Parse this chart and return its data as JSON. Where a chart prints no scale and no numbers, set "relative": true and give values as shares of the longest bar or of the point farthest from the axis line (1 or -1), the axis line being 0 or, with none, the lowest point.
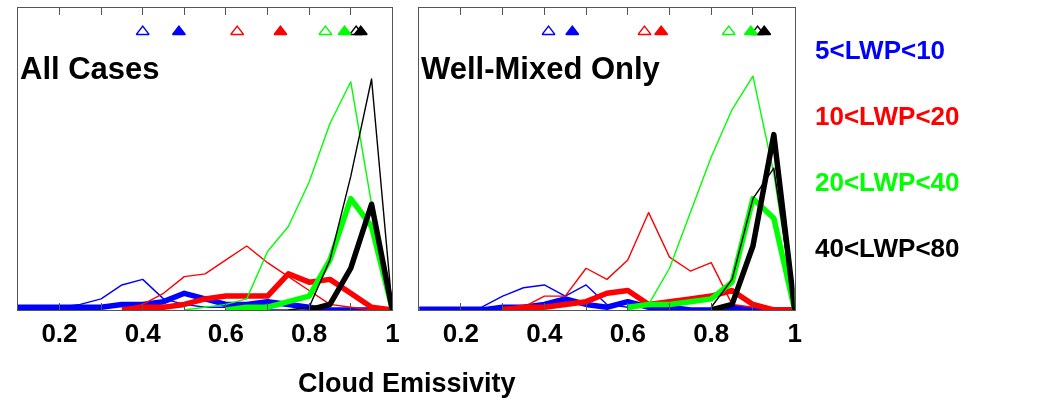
{
  "chart_data": [
    {
      "type": "line",
      "title": "All Cases",
      "xlabel": "Cloud Emissivity",
      "relative": true,
      "xlim": [
        0.1,
        1
      ],
      "xticks": [
        0.2,
        {
          "value": 0.3,
          "label": null
        },
        0.4,
        {
          "value": 0.5,
          "label": null
        },
        0.6,
        {
          "value": 0.7,
          "label": null
        },
        0.8,
        {
          "value": 0.9,
          "label": null
        },
        1
      ],
      "tick_labels": "x",
      "x": [
        0.1,
        0.15,
        0.2,
        0.25,
        0.3,
        0.35,
        0.4,
        0.45,
        0.5,
        0.55,
        0.6,
        0.65,
        0.7,
        0.75,
        0.8,
        0.85,
        0.9,
        0.95,
        1
      ],
      "series": [
        {
          "color": "#0000ff",
          "values": [
            0.01,
            0.01,
            0.01,
            0.02,
            0.04,
            0.09,
            0.11,
            0.04,
            0.02,
            0.01,
            0.01,
            0.01,
            0,
            0,
            0,
            0,
            0,
            0,
            0
          ]
        },
        {
          "color": "#0000ff",
          "values": [
            0.01,
            0.01,
            0.01,
            0.01,
            0.01,
            0.02,
            0.02,
            0.03,
            0.06,
            0.04,
            0.02,
            0.02,
            0.03,
            0.02,
            0.01,
            0,
            0,
            0,
            0
          ]
        },
        {
          "color": "#ff0000",
          "values": [
            null,
            null,
            null,
            null,
            null,
            0,
            0.02,
            0.06,
            0.12,
            0.13,
            0.18,
            0.23,
            0.17,
            0.12,
            0.07,
            0.02,
            0.01,
            0,
            0
          ]
        },
        {
          "color": "#ff0000",
          "values": [
            null,
            null,
            null,
            null,
            null,
            0,
            0.01,
            0.01,
            0.02,
            0.04,
            0.05,
            0.05,
            0.05,
            0.13,
            0.1,
            0.11,
            0.06,
            0.01,
            0
          ]
        },
        {
          "color": "#00ff00",
          "values": [
            null,
            null,
            null,
            null,
            null,
            null,
            null,
            null,
            0,
            0.01,
            0.02,
            0.04,
            0.21,
            0.3,
            0.46,
            0.67,
            0.82,
            0.38,
            0
          ]
        },
        {
          "color": "#00ff00",
          "values": [
            null,
            null,
            null,
            null,
            null,
            null,
            null,
            null,
            null,
            null,
            0,
            0.01,
            0.01,
            0.03,
            0.05,
            0.18,
            0.4,
            0.3,
            0
          ]
        },
        {
          "color": "#000000",
          "values": [
            null,
            null,
            null,
            null,
            null,
            null,
            null,
            null,
            null,
            null,
            null,
            null,
            null,
            0,
            0.01,
            0.18,
            0.48,
            0.83,
            0
          ]
        },
        {
          "color": "#000000",
          "values": [
            null,
            null,
            null,
            null,
            null,
            null,
            null,
            null,
            null,
            null,
            null,
            null,
            null,
            null,
            0,
            0.02,
            0.15,
            0.38,
            0
          ]
        },
        {
          "type": "scatter",
          "marker": "triangle",
          "x": [
            0.4,
            0.627,
            0.839,
            0.913
          ],
          "values": [
            1,
            1,
            1,
            1
          ],
          "colors": [
            "#0000ff",
            "#ff0000",
            "#00ff00",
            "#000000"
          ]
        },
        {
          "type": "scatter",
          "marker": "triangle",
          "x": [
            0.487,
            0.731,
            0.885,
            0.924
          ],
          "values": [
            1,
            1,
            1,
            1
          ],
          "colors": [
            "#0000ff",
            "#ff0000",
            "#00ff00",
            "#000000"
          ]
        }
      ]
    },
    {
      "type": "line",
      "title": "Well-Mixed Only",
      "relative": true,
      "xlim": [
        0.1,
        1
      ],
      "xticks": [
        0.2,
        {
          "value": 0.3,
          "label": null
        },
        0.4,
        {
          "value": 0.5,
          "label": null
        },
        0.6,
        {
          "value": 0.7,
          "label": null
        },
        0.8,
        {
          "value": 0.9,
          "label": null
        },
        1
      ],
      "tick_labels": "x",
      "x": [
        0.1,
        0.15,
        0.2,
        0.25,
        0.3,
        0.35,
        0.4,
        0.45,
        0.5,
        0.55,
        0.6,
        0.65,
        0.7,
        0.75,
        0.8,
        0.85,
        0.9,
        0.95,
        1
      ],
      "series": [
        {
          "color": "#0000ff",
          "values": [
            0.01,
            0.01,
            0.01,
            0.01,
            0.05,
            0.08,
            0.09,
            0.05,
            0.09,
            0.02,
            0.01,
            0.01,
            0,
            0,
            0,
            0,
            0,
            0,
            0
          ]
        },
        {
          "name": "5<LWP<10",
          "color": "#0000ff",
          "values": [
            0,
            0,
            0,
            0,
            0.01,
            0.01,
            0.02,
            0.04,
            0.02,
            0.01,
            0.03,
            0.01,
            0.01,
            0,
            0,
            0.01,
            0,
            0,
            0
          ]
        },
        {
          "color": "#ff0000",
          "values": [
            null,
            null,
            null,
            null,
            0.01,
            0.01,
            0.05,
            0.05,
            0.15,
            0.11,
            0.18,
            0.35,
            0.19,
            0.14,
            0.17,
            0.02,
            0.01,
            0,
            0
          ]
        },
        {
          "name": "10<LWP<20",
          "color": "#ff0000",
          "values": [
            null,
            null,
            null,
            null,
            0,
            0.01,
            0.01,
            0.02,
            0.03,
            0.06,
            0.07,
            0.02,
            0.03,
            0.04,
            0.05,
            0.07,
            0.02,
            0,
            0
          ]
        },
        {
          "color": "#00ff00",
          "values": [
            null,
            null,
            null,
            null,
            null,
            null,
            null,
            null,
            null,
            null,
            0,
            0.02,
            0.15,
            0.35,
            0.55,
            0.72,
            0.84,
            0.49,
            0
          ]
        },
        {
          "name": "20<LWP<40",
          "color": "#00ff00",
          "values": [
            null,
            null,
            null,
            null,
            null,
            null,
            null,
            null,
            null,
            null,
            0.01,
            0.02,
            0.02,
            0.03,
            0.04,
            0.1,
            0.4,
            0.33,
            0
          ]
        },
        {
          "color": "#000000",
          "values": [
            null,
            null,
            null,
            null,
            null,
            null,
            null,
            null,
            null,
            null,
            null,
            null,
            null,
            null,
            0.01,
            0.11,
            0.4,
            0.51,
            0
          ]
        },
        {
          "name": "40<LWP<80",
          "color": "#000000",
          "values": [
            null,
            null,
            null,
            null,
            null,
            null,
            null,
            null,
            null,
            null,
            null,
            null,
            null,
            null,
            0,
            0.02,
            0.23,
            0.63,
            0
          ]
        },
        {
          "type": "scatter",
          "marker": "triangle",
          "x": [
            0.41,
            0.64,
            0.842,
            0.911
          ],
          "values": [
            1,
            1,
            1,
            1
          ],
          "colors": [
            "#0000ff",
            "#ff0000",
            "#00ff00",
            "#000000"
          ]
        },
        {
          "type": "scatter",
          "marker": "triangle",
          "x": [
            0.467,
            0.68,
            0.895,
            0.927
          ],
          "values": [
            1,
            1,
            1,
            1
          ],
          "colors": [
            "#0000ff",
            "#ff0000",
            "#00ff00",
            "#000000"
          ]
        }
      ]
    }
  ]
}
